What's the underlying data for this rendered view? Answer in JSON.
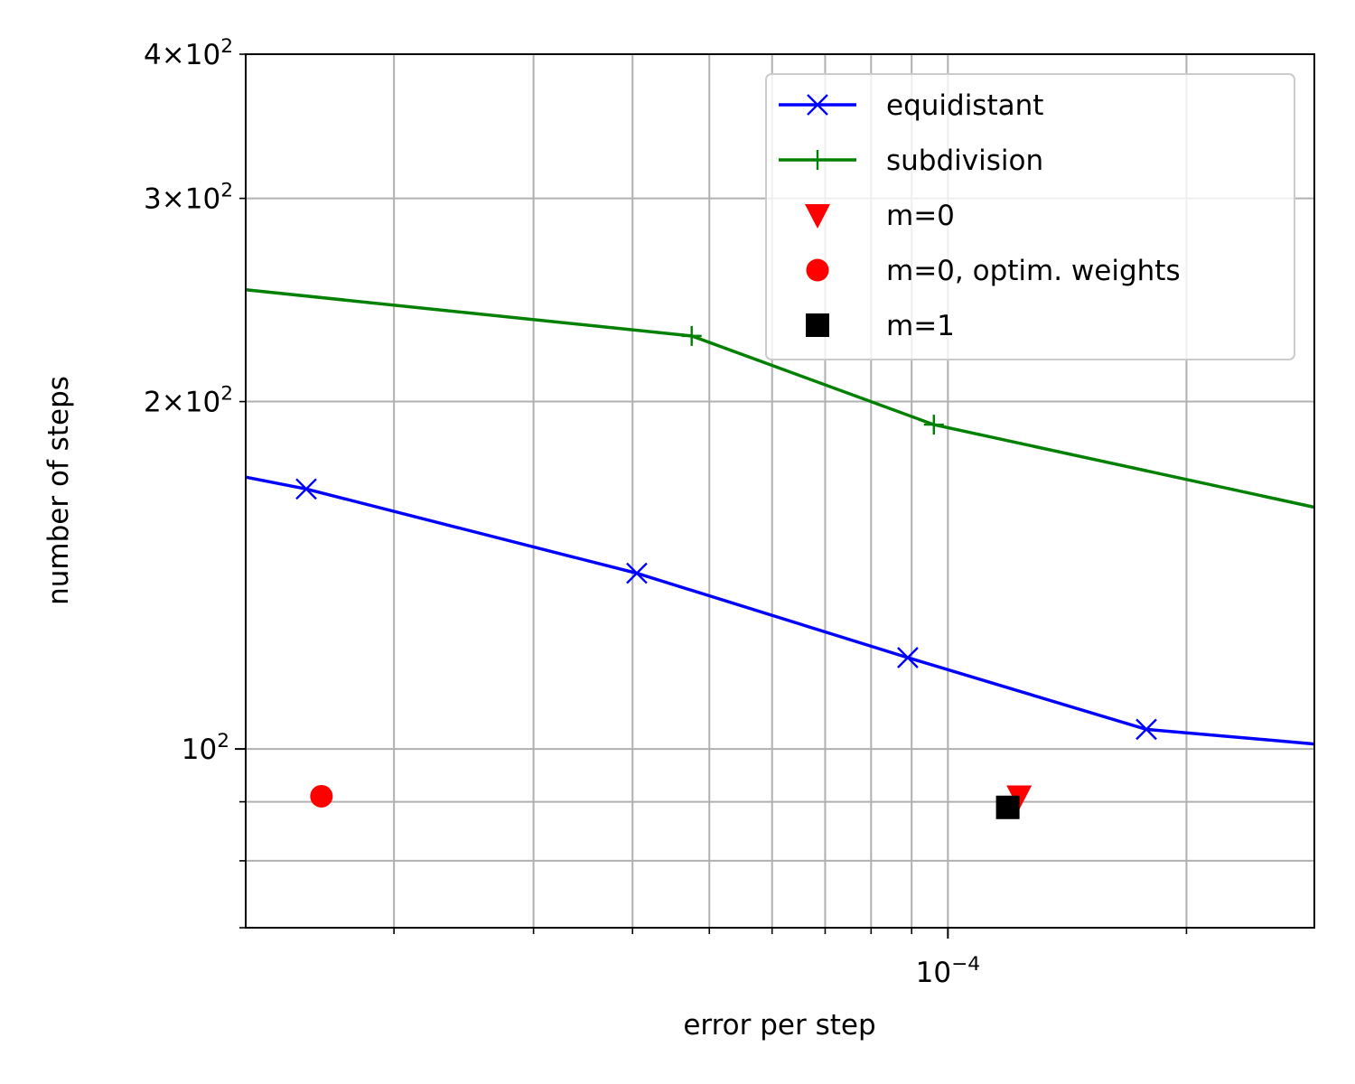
{
  "chart_data": {
    "type": "line",
    "xlabel": "error per step",
    "ylabel": "number of steps",
    "xscale": "log",
    "yscale": "log",
    "xlim": [
      1.3e-05,
      0.00029
    ],
    "ylim": [
      70,
      400
    ],
    "grid": true,
    "legend_position": "top-right",
    "x_major_ticks": [
      {
        "value": 0.0001,
        "base": "10",
        "exp": "−4"
      }
    ],
    "x_minor_ticks": [
      2e-05,
      3e-05,
      4e-05,
      5e-05,
      6e-05,
      7e-05,
      8e-05,
      9e-05,
      0.0002
    ],
    "y_major_ticks": [
      {
        "value": 100,
        "prefix": "",
        "base": "10",
        "exp": "2"
      }
    ],
    "y_labeled_minor_ticks": [
      {
        "value": 200,
        "prefix": "2×",
        "base": "10",
        "exp": "2"
      },
      {
        "value": 300,
        "prefix": "3×",
        "base": "10",
        "exp": "2"
      },
      {
        "value": 400,
        "prefix": "4×",
        "base": "10",
        "exp": "2"
      }
    ],
    "y_minor_ticks": [
      70,
      80,
      90
    ],
    "series": [
      {
        "name": "equidistant",
        "color": "#0000ff",
        "marker": "x",
        "line": true,
        "x": [
          1.3e-05,
          1.55e-05,
          4.05e-05,
          8.9e-05,
          0.000178,
          0.00029
        ],
        "y": [
          172,
          168,
          142,
          120,
          104,
          101
        ]
      },
      {
        "name": "subdivision",
        "color": "#008000",
        "marker": "+",
        "line": true,
        "x": [
          1.3e-05,
          4.75e-05,
          9.6e-05,
          0.00029
        ],
        "y": [
          250,
          228,
          191,
          162
        ],
        "marker_indices": [
          1,
          2
        ]
      },
      {
        "name": "m=0",
        "color": "#ff0000",
        "marker": "v",
        "line": false,
        "x": [
          0.000123
        ],
        "y": [
          91
        ]
      },
      {
        "name": "m=0, optim. weights",
        "color": "#ff0000",
        "marker": "o",
        "line": false,
        "x": [
          1.62e-05
        ],
        "y": [
          91
        ]
      },
      {
        "name": "m=1",
        "color": "#000000",
        "marker": "s",
        "line": false,
        "x": [
          0.000119
        ],
        "y": [
          89
        ]
      }
    ]
  }
}
